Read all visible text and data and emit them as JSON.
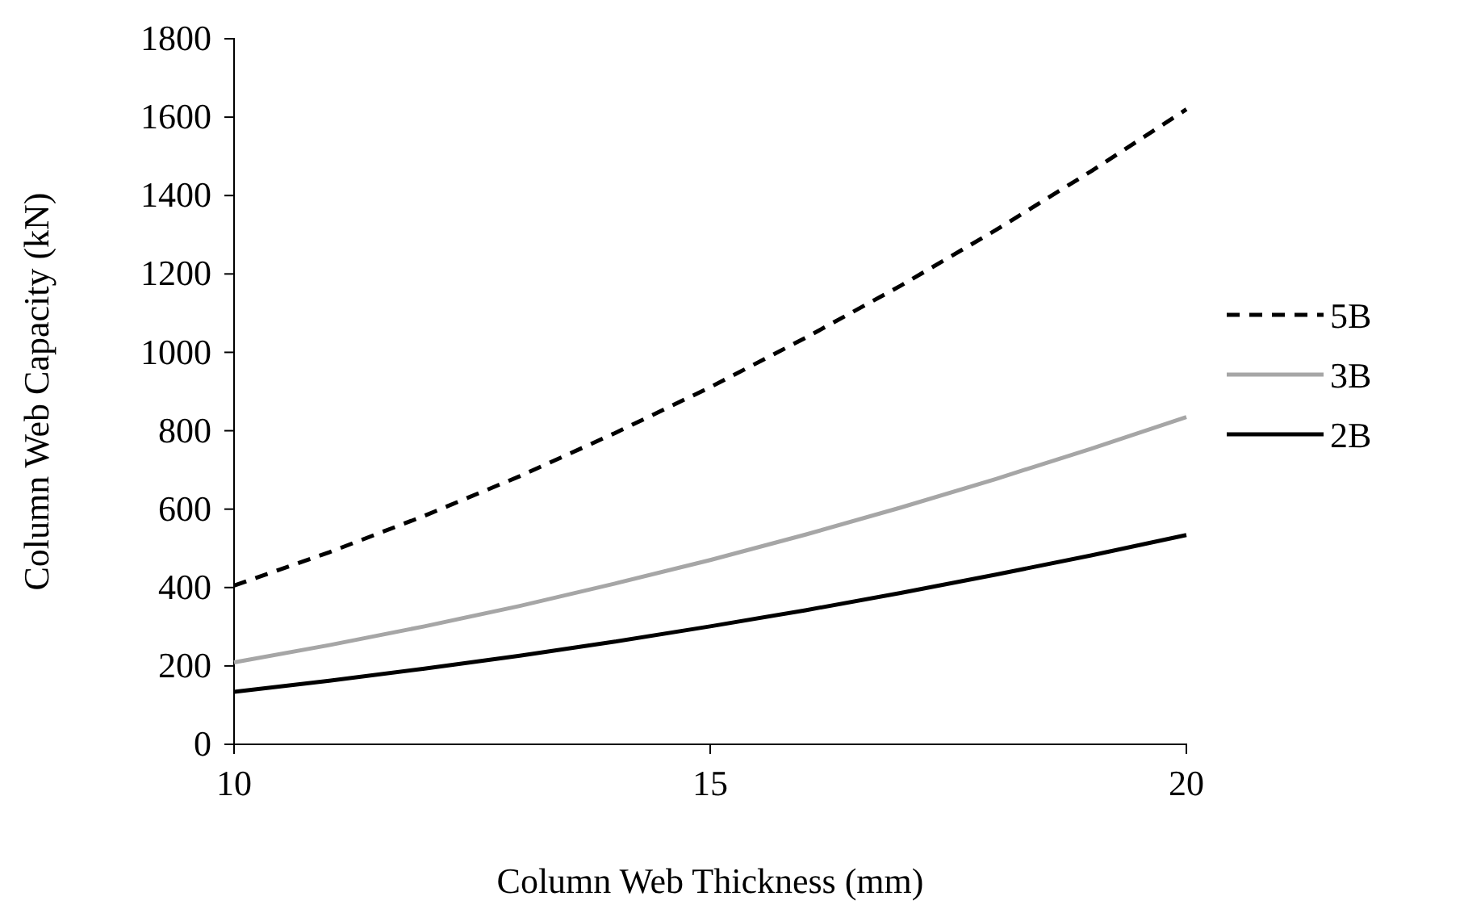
{
  "chart_data": {
    "type": "line",
    "xlabel": "Column Web Thickness (mm)",
    "ylabel": "Column Web Capacity (kN)",
    "x": [
      10,
      11,
      12,
      13,
      14,
      15,
      16,
      17,
      18,
      19,
      20
    ],
    "xlim": [
      10,
      20
    ],
    "xticks": [
      10,
      15,
      20
    ],
    "ylim": [
      0,
      1800
    ],
    "yticks": [
      0,
      200,
      400,
      600,
      800,
      1000,
      1200,
      1400,
      1600,
      1800
    ],
    "grid": false,
    "legend": "right",
    "marker": "none",
    "series": [
      {
        "name": "5B",
        "color": "#000000",
        "line_style": "dashed",
        "values": [
          405,
          490,
          583,
          684,
          794,
          911,
          1037,
          1170,
          1312,
          1462,
          1620
        ]
      },
      {
        "name": "3B",
        "color": "#a6a6a6",
        "line_style": "solid",
        "values": [
          209,
          253,
          301,
          353,
          410,
          470,
          535,
          604,
          677,
          754,
          835
        ]
      },
      {
        "name": "2B",
        "color": "#000000",
        "line_style": "solid",
        "values": [
          134,
          162,
          193,
          226,
          262,
          301,
          342,
          386,
          433,
          482,
          534
        ]
      }
    ]
  }
}
